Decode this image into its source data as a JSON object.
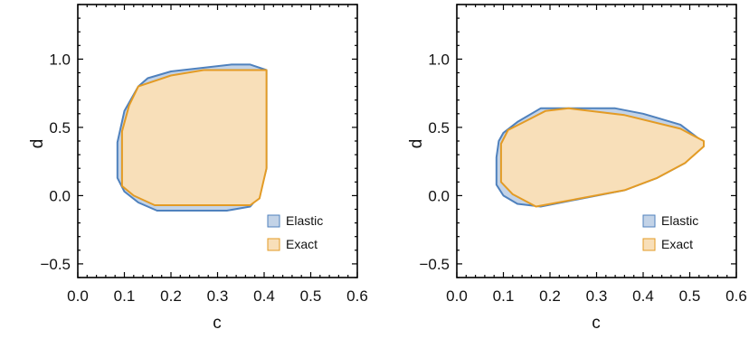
{
  "chart_data": [
    {
      "type": "area",
      "xlabel": "c",
      "ylabel": "d",
      "xlim": [
        0.0,
        0.6
      ],
      "ylim": [
        -0.6,
        1.4
      ],
      "xticks": [
        "0.0",
        "0.1",
        "0.2",
        "0.3",
        "0.4",
        "0.5",
        "0.6"
      ],
      "xtick_values": [
        0.0,
        0.1,
        0.2,
        0.3,
        0.4,
        0.5,
        0.6
      ],
      "yticks": [
        "−0.5",
        "0.0",
        "0.5",
        "1.0"
      ],
      "ytick_values": [
        -0.5,
        0.0,
        0.5,
        1.0
      ],
      "legend_position": "bottom-right",
      "series": [
        {
          "name": "Elastic",
          "fill": "#c3d3e7",
          "stroke": "#4f81bd",
          "points": [
            [
              0.085,
              0.39
            ],
            [
              0.085,
              0.13
            ],
            [
              0.1,
              0.03
            ],
            [
              0.13,
              -0.05
            ],
            [
              0.17,
              -0.11
            ],
            [
              0.32,
              -0.11
            ],
            [
              0.37,
              -0.08
            ],
            [
              0.39,
              0.0
            ],
            [
              0.405,
              0.2
            ],
            [
              0.405,
              0.92
            ],
            [
              0.37,
              0.96
            ],
            [
              0.33,
              0.96
            ],
            [
              0.2,
              0.91
            ],
            [
              0.15,
              0.86
            ],
            [
              0.13,
              0.8
            ],
            [
              0.1,
              0.62
            ]
          ]
        },
        {
          "name": "Exact",
          "fill": "#f8dfb9",
          "stroke": "#e39b25",
          "points": [
            [
              0.095,
              0.47
            ],
            [
              0.095,
              0.07
            ],
            [
              0.12,
              0.0
            ],
            [
              0.165,
              -0.07
            ],
            [
              0.37,
              -0.07
            ],
            [
              0.39,
              -0.02
            ],
            [
              0.405,
              0.2
            ],
            [
              0.405,
              0.92
            ],
            [
              0.27,
              0.92
            ],
            [
              0.2,
              0.88
            ],
            [
              0.13,
              0.8
            ],
            [
              0.11,
              0.66
            ]
          ]
        }
      ]
    },
    {
      "type": "area",
      "xlabel": "c",
      "ylabel": "d",
      "xlim": [
        0.0,
        0.6
      ],
      "ylim": [
        -0.6,
        1.4
      ],
      "xticks": [
        "0.0",
        "0.1",
        "0.2",
        "0.3",
        "0.4",
        "0.5",
        "0.6"
      ],
      "xtick_values": [
        0.0,
        0.1,
        0.2,
        0.3,
        0.4,
        0.5,
        0.6
      ],
      "yticks": [
        "−0.5",
        "0.0",
        "0.5",
        "1.0"
      ],
      "ytick_values": [
        -0.5,
        0.0,
        0.5,
        1.0
      ],
      "legend_position": "bottom-right",
      "series": [
        {
          "name": "Elastic",
          "fill": "#c3d3e7",
          "stroke": "#4f81bd",
          "points": [
            [
              0.085,
              0.28
            ],
            [
              0.085,
              0.08
            ],
            [
              0.1,
              0.0
            ],
            [
              0.13,
              -0.06
            ],
            [
              0.18,
              -0.08
            ],
            [
              0.36,
              0.04
            ],
            [
              0.43,
              0.13
            ],
            [
              0.49,
              0.24
            ],
            [
              0.53,
              0.39
            ],
            [
              0.48,
              0.52
            ],
            [
              0.4,
              0.6
            ],
            [
              0.34,
              0.64
            ],
            [
              0.18,
              0.64
            ],
            [
              0.13,
              0.54
            ],
            [
              0.1,
              0.46
            ],
            [
              0.09,
              0.4
            ]
          ]
        },
        {
          "name": "Exact",
          "fill": "#f8dfb9",
          "stroke": "#e39b25",
          "points": [
            [
              0.095,
              0.38
            ],
            [
              0.095,
              0.1
            ],
            [
              0.12,
              0.01
            ],
            [
              0.17,
              -0.08
            ],
            [
              0.36,
              0.04
            ],
            [
              0.43,
              0.13
            ],
            [
              0.49,
              0.24
            ],
            [
              0.53,
              0.36
            ],
            [
              0.53,
              0.4
            ],
            [
              0.48,
              0.49
            ],
            [
              0.36,
              0.59
            ],
            [
              0.24,
              0.64
            ],
            [
              0.19,
              0.62
            ],
            [
              0.15,
              0.55
            ],
            [
              0.11,
              0.48
            ]
          ]
        }
      ]
    }
  ]
}
